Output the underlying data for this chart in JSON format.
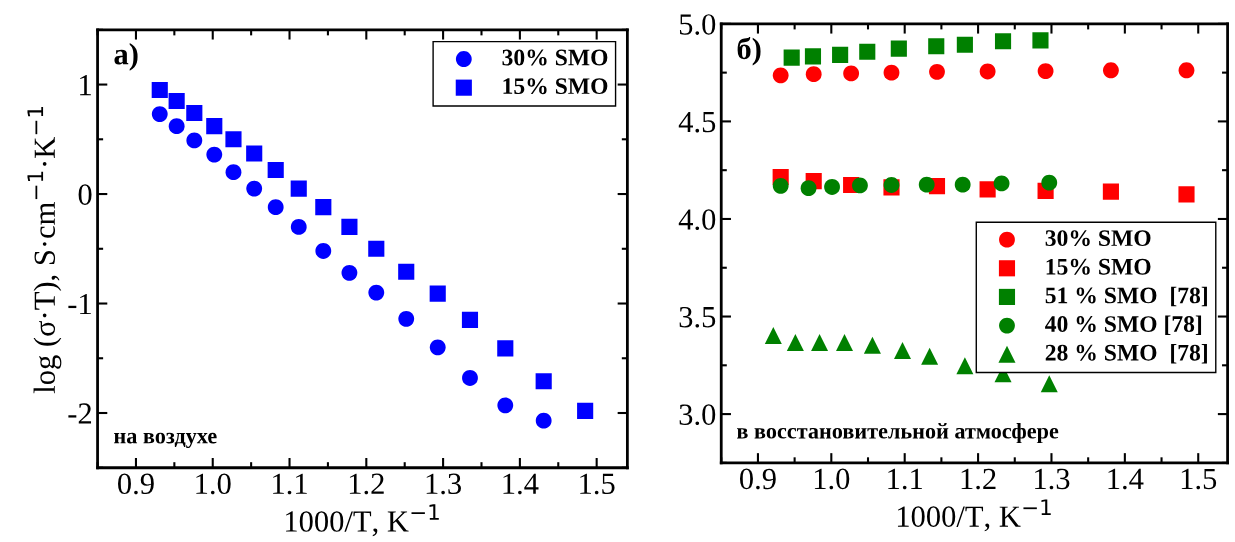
{
  "chart_data": [
    {
      "type": "scatter",
      "xlabel": "1000/T, K$^{−1}$",
      "ylabel": "log (σ·T), S·cm$^{−1}$·K$^{−1}$",
      "xlim": [
        0.85,
        1.54
      ],
      "ylim": [
        -2.5,
        1.5
      ],
      "xticks": [
        {
          "value": 0.9,
          "label": "0.9"
        },
        {
          "value": 1.0,
          "label": "1.0"
        },
        {
          "value": 1.1,
          "label": "1.1"
        },
        {
          "value": 1.2,
          "label": "1.2"
        },
        {
          "value": 1.3,
          "label": "1.3"
        },
        {
          "value": 1.4,
          "label": "1.4"
        },
        {
          "value": 1.5,
          "label": "1.5"
        }
      ],
      "yticks": [
        -2,
        -1,
        0,
        1
      ],
      "legend": "top right",
      "grid": false,
      "annotations": [
        "а)",
        "на воздухе"
      ],
      "series": [
        {
          "name": "30% SMO",
          "color": "#0000ff",
          "marker": "circle",
          "x": [
            0.931,
            0.953,
            0.976,
            1.002,
            1.027,
            1.054,
            1.082,
            1.112,
            1.144,
            1.178,
            1.213,
            1.252,
            1.293,
            1.335,
            1.381,
            1.431
          ],
          "values": [
            0.73,
            0.62,
            0.49,
            0.36,
            0.2,
            0.05,
            -0.12,
            -0.3,
            -0.52,
            -0.72,
            -0.9,
            -1.14,
            -1.4,
            -1.68,
            -1.93,
            -2.07
          ]
        },
        {
          "name": "15% SMO",
          "color": "#0000ff",
          "marker": "square",
          "x": [
            0.931,
            0.953,
            0.976,
            1.002,
            1.027,
            1.054,
            1.082,
            1.112,
            1.144,
            1.178,
            1.213,
            1.252,
            1.293,
            1.335,
            1.381,
            1.431,
            1.485
          ],
          "values": [
            0.95,
            0.85,
            0.74,
            0.62,
            0.5,
            0.37,
            0.22,
            0.05,
            -0.12,
            -0.3,
            -0.5,
            -0.71,
            -0.91,
            -1.15,
            -1.41,
            -1.71,
            -1.98
          ]
        }
      ]
    },
    {
      "type": "scatter",
      "xlabel": "1000/T, K$^{−1}$",
      "xlim": [
        0.85,
        1.54
      ],
      "ylim": [
        2.75,
        5.0
      ],
      "xticks": [
        {
          "value": 0.9,
          "label": "0.9"
        },
        {
          "value": 1.0,
          "label": "1.0"
        },
        {
          "value": 1.1,
          "label": "1.1"
        },
        {
          "value": 1.2,
          "label": "1.2"
        },
        {
          "value": 1.3,
          "label": "1.3"
        },
        {
          "value": 1.4,
          "label": "1.4"
        },
        {
          "value": 1.5,
          "label": "1.5"
        }
      ],
      "yticks": [
        {
          "value": 3.0,
          "label": "3.0"
        },
        {
          "value": 3.5,
          "label": "3.5"
        },
        {
          "value": 4.0,
          "label": "4.0"
        },
        {
          "value": 4.5,
          "label": "4.5"
        },
        {
          "value": 5.0,
          "label": "5.0"
        }
      ],
      "legend": "right",
      "grid": false,
      "annotations": [
        "б)",
        "в восстановительной атмосфере"
      ],
      "series": [
        {
          "name": "30% SMO",
          "color": "#ff0000",
          "marker": "circle",
          "x": [
            0.931,
            0.976,
            1.027,
            1.082,
            1.144,
            1.213,
            1.292,
            1.381,
            1.484
          ],
          "values": [
            4.736,
            4.742,
            4.746,
            4.75,
            4.754,
            4.756,
            4.758,
            4.762,
            4.762
          ]
        },
        {
          "name": "15% SMO",
          "color": "#ff0000",
          "marker": "square",
          "x": [
            0.931,
            0.976,
            1.027,
            1.082,
            1.144,
            1.213,
            1.292,
            1.381,
            1.484
          ],
          "values": [
            4.215,
            4.194,
            4.174,
            4.162,
            4.168,
            4.152,
            4.144,
            4.14,
            4.126
          ]
        },
        {
          "name": "51 % SMO  [78]",
          "color": "#008000",
          "marker": "square",
          "x": [
            0.946,
            0.975,
            1.012,
            1.049,
            1.092,
            1.143,
            1.182,
            1.234,
            1.285
          ],
          "values": [
            4.827,
            4.833,
            4.841,
            4.857,
            4.873,
            4.885,
            4.893,
            4.911,
            4.915
          ]
        },
        {
          "name": "40 % SMO [78]",
          "color": "#008000",
          "marker": "circle",
          "x": [
            0.931,
            0.969,
            1.001,
            1.039,
            1.082,
            1.13,
            1.179,
            1.232,
            1.297
          ],
          "values": [
            4.17,
            4.158,
            4.164,
            4.172,
            4.174,
            4.176,
            4.176,
            4.182,
            4.186
          ]
        },
        {
          "name": "28 % SMO  [78]",
          "color": "#008000",
          "marker": "triangle",
          "x": [
            0.921,
            0.951,
            0.984,
            1.018,
            1.056,
            1.097,
            1.134,
            1.182,
            1.234,
            1.297
          ],
          "values": [
            3.403,
            3.367,
            3.367,
            3.367,
            3.353,
            3.326,
            3.296,
            3.248,
            3.207,
            3.155
          ]
        }
      ]
    }
  ]
}
